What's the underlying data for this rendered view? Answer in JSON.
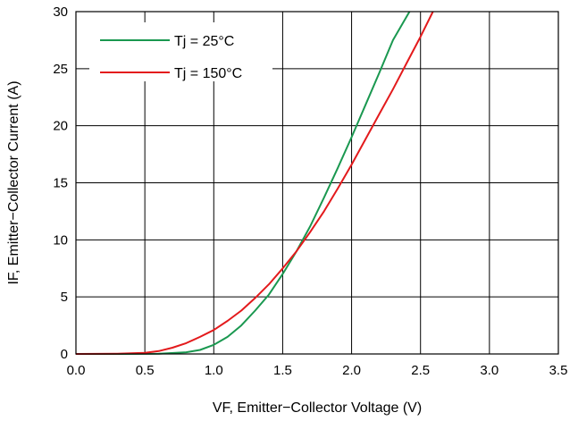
{
  "chart_data": {
    "type": "line",
    "xlabel": "VF, Emitter−Collector Voltage (V)",
    "ylabel": "IF, Emitter−Collector Current (A)",
    "xlim": [
      0,
      3.5
    ],
    "ylim": [
      0,
      30
    ],
    "xticks": [
      "0.0",
      "0.5",
      "1.0",
      "1.5",
      "2.0",
      "2.5",
      "3.0",
      "3.5"
    ],
    "yticks": [
      "0",
      "5",
      "10",
      "15",
      "20",
      "25",
      "30"
    ],
    "grid": true,
    "legend_position": "top-left",
    "series": [
      {
        "name": "Tj = 25°C",
        "color": "#1a9850",
        "x": [
          0.0,
          0.3,
          0.6,
          0.8,
          0.9,
          1.0,
          1.1,
          1.2,
          1.3,
          1.4,
          1.5,
          1.6,
          1.7,
          1.8,
          1.9,
          2.0,
          2.1,
          2.2,
          2.3,
          2.42
        ],
        "y": [
          0.0,
          0.0,
          0.02,
          0.15,
          0.35,
          0.8,
          1.5,
          2.5,
          3.8,
          5.2,
          7.0,
          9.0,
          11.2,
          13.7,
          16.3,
          19.0,
          21.8,
          24.6,
          27.5,
          30.0
        ]
      },
      {
        "name": "Tj = 150°C",
        "color": "#e31a1c",
        "x": [
          0.0,
          0.3,
          0.5,
          0.6,
          0.7,
          0.8,
          0.9,
          1.0,
          1.1,
          1.2,
          1.3,
          1.4,
          1.5,
          1.6,
          1.7,
          1.8,
          1.9,
          2.0,
          2.1,
          2.2,
          2.3,
          2.4,
          2.5,
          2.59
        ],
        "y": [
          0.0,
          0.02,
          0.1,
          0.25,
          0.55,
          0.95,
          1.5,
          2.1,
          2.9,
          3.8,
          4.9,
          6.1,
          7.5,
          9.0,
          10.7,
          12.5,
          14.5,
          16.6,
          18.8,
          21.0,
          23.2,
          25.5,
          27.8,
          30.0
        ]
      }
    ]
  }
}
